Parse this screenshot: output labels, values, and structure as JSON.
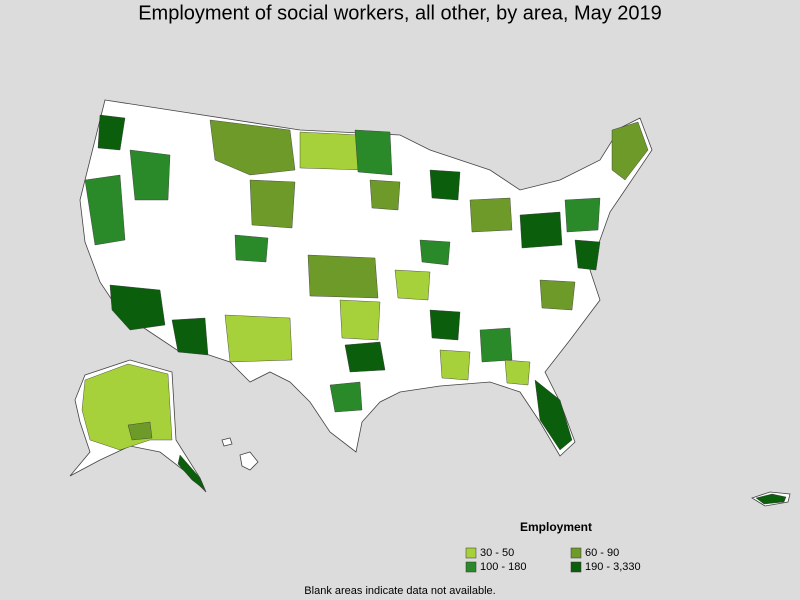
{
  "header": {
    "title": "Employment of social workers, all other, by area, May 2019"
  },
  "legend": {
    "title": "Employment",
    "items": [
      {
        "label": "30 - 50",
        "color": "#a6d13a"
      },
      {
        "label": "60 - 90",
        "color": "#6e9a2a"
      },
      {
        "label": "100 - 180",
        "color": "#2a8a2a"
      },
      {
        "label": "190 - 3,330",
        "color": "#0b5e0b"
      }
    ]
  },
  "footnote": "Blank areas indicate data not available."
}
